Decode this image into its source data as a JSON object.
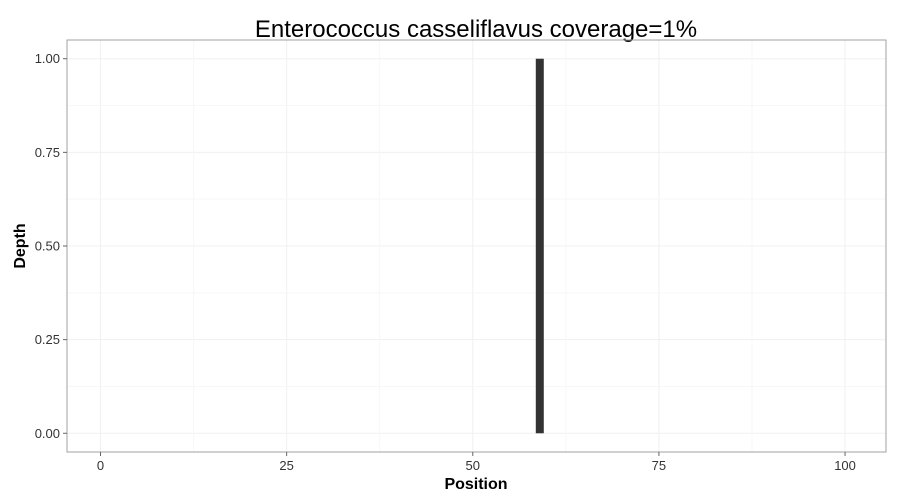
{
  "chart_data": {
    "type": "bar",
    "title": "Enterococcus casseliflavus coverage=1%",
    "xlabel": "Position",
    "ylabel": "Depth",
    "xlim": [
      -4.5,
      105.5
    ],
    "ylim": [
      -0.05,
      1.05
    ],
    "x_ticks": [
      0,
      25,
      50,
      75,
      100
    ],
    "x_tick_labels": [
      "0",
      "25",
      "50",
      "75",
      "100"
    ],
    "y_ticks": [
      0,
      0.25,
      0.5,
      0.75,
      1
    ],
    "y_tick_labels": [
      "0.00",
      "0.25",
      "0.50",
      "0.75",
      "1.00"
    ],
    "grid": true,
    "points": [
      {
        "x": 59,
        "y": 1
      }
    ],
    "colors": {
      "bar": "#333333",
      "grid": "#f0f0f0",
      "panel_border": "#a0a0a0",
      "tick": "#666666"
    }
  }
}
